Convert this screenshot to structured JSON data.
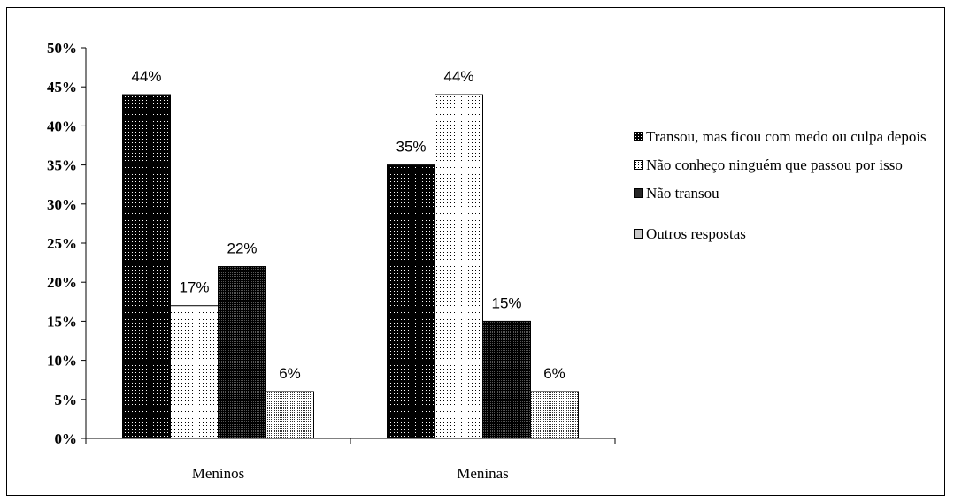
{
  "chart_data": {
    "type": "bar",
    "categories": [
      "Meninos",
      "Meninas"
    ],
    "series": [
      {
        "name": "Transou, mas ficou com medo ou culpa depois",
        "values": [
          44,
          35
        ],
        "labels": [
          "44%",
          "35%"
        ],
        "pattern": "pat-black"
      },
      {
        "name": "Não conheço ninguém que passou por isso",
        "values": [
          17,
          44
        ],
        "labels": [
          "17%",
          "44%"
        ],
        "pattern": "pat-white"
      },
      {
        "name": "Não transou",
        "values": [
          22,
          15
        ],
        "labels": [
          "22%",
          "15%"
        ],
        "pattern": "pat-dark"
      },
      {
        "name": "Outros respostas",
        "values": [
          6,
          6
        ],
        "labels": [
          "6%",
          "6%"
        ],
        "pattern": "pat-light"
      }
    ],
    "yticks": [
      "0%",
      "5%",
      "10%",
      "15%",
      "20%",
      "25%",
      "30%",
      "35%",
      "40%",
      "45%",
      "50%"
    ],
    "ylim": [
      0,
      50
    ],
    "legend_position": "right",
    "grid": false
  }
}
